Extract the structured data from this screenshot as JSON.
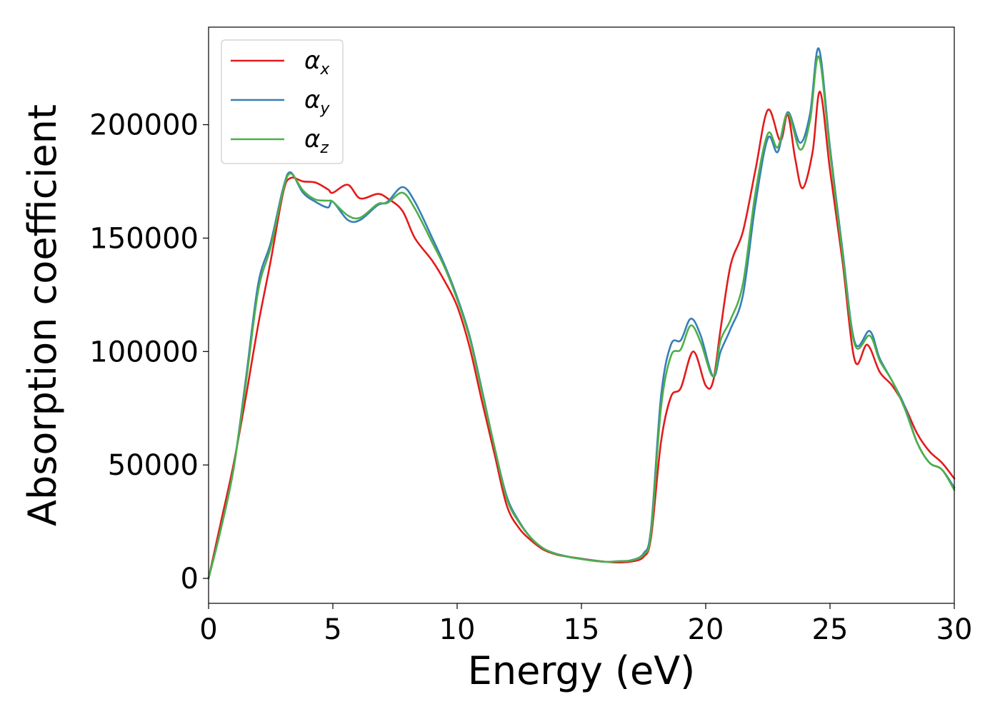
{
  "chart_data": {
    "type": "line",
    "title": "",
    "xlabel": "Energy (eV)",
    "ylabel": "Absorption coefficient",
    "xlim": [
      0,
      30
    ],
    "ylim": [
      -11000,
      243000
    ],
    "xticks": [
      0,
      5,
      10,
      15,
      20,
      25,
      30
    ],
    "xtick_labels": [
      "0",
      "5",
      "10",
      "15",
      "20",
      "25",
      "30"
    ],
    "yticks": [
      0,
      50000,
      100000,
      150000,
      200000
    ],
    "ytick_labels": [
      "0",
      "50000",
      "100000",
      "150000",
      "200000"
    ],
    "grid": false,
    "legend_position": "top-left",
    "series": [
      {
        "name": "αx",
        "symbol": "α",
        "subscript": "x",
        "color": "#e41a1c",
        "points": [
          [
            0,
            0
          ],
          [
            0.5,
            25000
          ],
          [
            1.0,
            50000
          ],
          [
            1.5,
            80000
          ],
          [
            2.0,
            112000
          ],
          [
            2.5,
            140000
          ],
          [
            3.0,
            170000
          ],
          [
            3.3,
            176500
          ],
          [
            3.8,
            175000
          ],
          [
            4.3,
            174500
          ],
          [
            4.8,
            171500
          ],
          [
            5.0,
            170000
          ],
          [
            5.6,
            173500
          ],
          [
            6.1,
            167500
          ],
          [
            6.8,
            169500
          ],
          [
            7.2,
            167500
          ],
          [
            7.8,
            162000
          ],
          [
            8.3,
            150000
          ],
          [
            9.0,
            140000
          ],
          [
            9.5,
            131000
          ],
          [
            10.0,
            120000
          ],
          [
            10.5,
            102000
          ],
          [
            11.0,
            78000
          ],
          [
            11.5,
            55000
          ],
          [
            12.0,
            32000
          ],
          [
            12.5,
            22000
          ],
          [
            13.0,
            16500
          ],
          [
            13.5,
            12500
          ],
          [
            14.0,
            10500
          ],
          [
            14.5,
            9500
          ],
          [
            15.0,
            8700
          ],
          [
            15.5,
            7900
          ],
          [
            16.0,
            7300
          ],
          [
            16.5,
            7000
          ],
          [
            17.0,
            7400
          ],
          [
            17.5,
            9500
          ],
          [
            17.8,
            18000
          ],
          [
            18.2,
            60000
          ],
          [
            18.6,
            80000
          ],
          [
            19.0,
            84000
          ],
          [
            19.5,
            100000
          ],
          [
            20.0,
            85000
          ],
          [
            20.3,
            87000
          ],
          [
            20.6,
            110000
          ],
          [
            21.0,
            138000
          ],
          [
            21.5,
            153000
          ],
          [
            22.0,
            180000
          ],
          [
            22.5,
            206500
          ],
          [
            23.0,
            193000
          ],
          [
            23.3,
            204500
          ],
          [
            23.6,
            185000
          ],
          [
            23.9,
            172000
          ],
          [
            24.3,
            188000
          ],
          [
            24.6,
            214500
          ],
          [
            25.0,
            180000
          ],
          [
            25.5,
            140000
          ],
          [
            26.0,
            96000
          ],
          [
            26.5,
            103000
          ],
          [
            27.0,
            91000
          ],
          [
            27.5,
            85000
          ],
          [
            28.0,
            76000
          ],
          [
            28.5,
            64000
          ],
          [
            29.0,
            56000
          ],
          [
            29.5,
            51000
          ],
          [
            30.0,
            44000
          ]
        ]
      },
      {
        "name": "αy",
        "symbol": "α",
        "subscript": "y",
        "color": "#377eb8",
        "points": [
          [
            0,
            0
          ],
          [
            0.5,
            22000
          ],
          [
            1.0,
            48000
          ],
          [
            1.5,
            88000
          ],
          [
            2.0,
            130000
          ],
          [
            2.5,
            148000
          ],
          [
            3.0,
            172000
          ],
          [
            3.3,
            179000
          ],
          [
            3.8,
            170000
          ],
          [
            4.3,
            166000
          ],
          [
            4.8,
            163500
          ],
          [
            5.0,
            166000
          ],
          [
            5.6,
            158000
          ],
          [
            6.1,
            158000
          ],
          [
            6.8,
            164500
          ],
          [
            7.2,
            166000
          ],
          [
            7.8,
            172500
          ],
          [
            8.3,
            166000
          ],
          [
            9.0,
            150000
          ],
          [
            9.5,
            138000
          ],
          [
            10.0,
            124000
          ],
          [
            10.5,
            107000
          ],
          [
            11.0,
            83000
          ],
          [
            11.5,
            58000
          ],
          [
            12.0,
            36000
          ],
          [
            12.5,
            25000
          ],
          [
            13.0,
            17500
          ],
          [
            13.5,
            13000
          ],
          [
            14.0,
            10800
          ],
          [
            14.5,
            9500
          ],
          [
            15.0,
            8600
          ],
          [
            15.5,
            7800
          ],
          [
            16.0,
            7300
          ],
          [
            16.5,
            7600
          ],
          [
            17.0,
            8000
          ],
          [
            17.5,
            11000
          ],
          [
            17.8,
            22000
          ],
          [
            18.2,
            80000
          ],
          [
            18.6,
            103000
          ],
          [
            19.0,
            105000
          ],
          [
            19.4,
            114500
          ],
          [
            19.8,
            107000
          ],
          [
            20.3,
            89000
          ],
          [
            20.6,
            100000
          ],
          [
            21.0,
            110000
          ],
          [
            21.5,
            125000
          ],
          [
            22.0,
            165000
          ],
          [
            22.5,
            194000
          ],
          [
            22.9,
            188000
          ],
          [
            23.3,
            205500
          ],
          [
            23.8,
            192000
          ],
          [
            24.2,
            205000
          ],
          [
            24.55,
            233500
          ],
          [
            25.0,
            190000
          ],
          [
            25.5,
            145000
          ],
          [
            26.0,
            104000
          ],
          [
            26.6,
            109000
          ],
          [
            27.0,
            97000
          ],
          [
            27.5,
            87000
          ],
          [
            28.0,
            76000
          ],
          [
            28.5,
            60000
          ],
          [
            29.0,
            51000
          ],
          [
            29.5,
            48000
          ],
          [
            30.0,
            40000
          ]
        ]
      },
      {
        "name": "αz",
        "symbol": "α",
        "subscript": "z",
        "color": "#4daf4a",
        "points": [
          [
            0,
            0
          ],
          [
            0.5,
            22000
          ],
          [
            1.0,
            48000
          ],
          [
            1.5,
            86000
          ],
          [
            2.0,
            127000
          ],
          [
            2.5,
            146000
          ],
          [
            3.0,
            171000
          ],
          [
            3.3,
            178500
          ],
          [
            3.8,
            171000
          ],
          [
            4.3,
            167000
          ],
          [
            4.8,
            166500
          ],
          [
            5.0,
            166000
          ],
          [
            5.6,
            160000
          ],
          [
            6.1,
            159000
          ],
          [
            6.8,
            165000
          ],
          [
            7.2,
            165500
          ],
          [
            7.8,
            170000
          ],
          [
            8.3,
            163000
          ],
          [
            9.0,
            148000
          ],
          [
            9.5,
            137000
          ],
          [
            10.0,
            123000
          ],
          [
            10.5,
            106000
          ],
          [
            11.0,
            82000
          ],
          [
            11.5,
            58000
          ],
          [
            12.0,
            35000
          ],
          [
            12.5,
            24500
          ],
          [
            13.0,
            17500
          ],
          [
            13.5,
            13000
          ],
          [
            14.0,
            10700
          ],
          [
            14.5,
            9400
          ],
          [
            15.0,
            8500
          ],
          [
            15.5,
            7700
          ],
          [
            16.0,
            7300
          ],
          [
            16.5,
            7500
          ],
          [
            17.0,
            7900
          ],
          [
            17.5,
            10500
          ],
          [
            17.8,
            20000
          ],
          [
            18.2,
            75000
          ],
          [
            18.6,
            98000
          ],
          [
            19.0,
            101000
          ],
          [
            19.4,
            111500
          ],
          [
            19.8,
            104000
          ],
          [
            20.3,
            89000
          ],
          [
            20.6,
            105000
          ],
          [
            21.0,
            114000
          ],
          [
            21.5,
            130000
          ],
          [
            22.0,
            170000
          ],
          [
            22.5,
            196000
          ],
          [
            22.9,
            190000
          ],
          [
            23.3,
            205000
          ],
          [
            23.8,
            189000
          ],
          [
            24.2,
            202000
          ],
          [
            24.55,
            230000
          ],
          [
            25.0,
            188000
          ],
          [
            25.5,
            143000
          ],
          [
            26.0,
            103000
          ],
          [
            26.6,
            107000
          ],
          [
            27.0,
            96000
          ],
          [
            27.5,
            87000
          ],
          [
            28.0,
            75000
          ],
          [
            28.5,
            60000
          ],
          [
            29.0,
            51000
          ],
          [
            29.5,
            48000
          ],
          [
            30.0,
            39000
          ]
        ]
      }
    ]
  }
}
